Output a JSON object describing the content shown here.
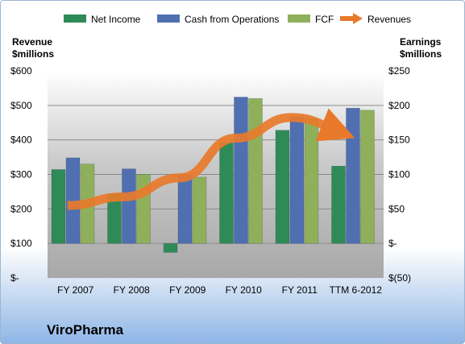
{
  "chart_data": {
    "type": "bar",
    "company": "ViroPharma",
    "categories": [
      "FY 2007",
      "FY 2008",
      "FY 2009",
      "FY 2010",
      "FY 2011",
      "TTM 6-2012"
    ],
    "series": [
      {
        "name": "Net Income",
        "axis": "right",
        "color": "#2e8b57",
        "values": [
          107,
          72,
          -13,
          146,
          164,
          112
        ]
      },
      {
        "name": "Cash from Operations",
        "axis": "right",
        "color": "#4f6fb0",
        "values": [
          124,
          108,
          99,
          212,
          184,
          196
        ]
      },
      {
        "name": "FCF",
        "axis": "right",
        "color": "#8fb05a",
        "values": [
          115,
          100,
          96,
          210,
          181,
          193
        ]
      },
      {
        "name": "Revenues",
        "axis": "left",
        "color": "#e8792b",
        "values": [
          210,
          235,
          290,
          405,
          465,
          null
        ]
      }
    ],
    "left_axis": {
      "title": "Revenue\n$millions",
      "range": [
        0,
        600
      ],
      "ticks": [
        "$-",
        "$100",
        "$200",
        "$300",
        "$400",
        "$500",
        "$600"
      ]
    },
    "right_axis": {
      "title": "Earnings\n$millions",
      "range": [
        -50,
        250
      ],
      "ticks": [
        "$(50)",
        "$-",
        "$50",
        "$100",
        "$150",
        "$200",
        "$250"
      ]
    },
    "legend_position": "top",
    "grid": true
  }
}
